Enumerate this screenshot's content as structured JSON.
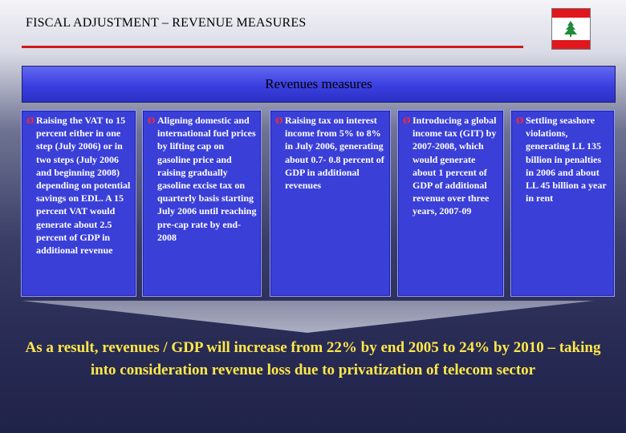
{
  "slide": {
    "title": "FISCAL ADJUSTMENT – REVENUE MEASURES",
    "banner": "Revenues measures",
    "measures": [
      "Raising the VAT to 15 percent either in one step (July 2006) or in two steps (July 2006 and beginning 2008) depending on potential savings on EDL. A 15 percent VAT would generate about 2.5 percent of GDP in additional revenue",
      "Aligning domestic and international fuel prices by lifting cap on gasoline price and raising gradually gasoline excise tax on quarterly basis starting July 2006 until reaching pre-cap rate by end-2008",
      "Raising tax on interest income from 5% to 8% in July 2006, generating about 0.7- 0.8 percent of GDP in additional revenues",
      "Introducing a global income tax (GIT) by 2007-2008, which would generate about 1 percent of GDP of additional revenue over three years, 2007-09",
      "Settling seashore violations, generating LL 135 billion in penalties in 2006 and about LL 45 billion a year in rent"
    ],
    "bullet_glyph": "Ø",
    "result": "As a result, revenues / GDP will increase from 22% by end 2005 to 24% by 2010 – taking into consideration revenue loss due to privatization of telecom sector"
  },
  "colors": {
    "title_rule": "#d01a1a",
    "banner": "#3a3ee0",
    "panel": "#3a3fd8",
    "bullet": "#ff2a2a",
    "result_text": "#ffe84a",
    "flag_red": "#e0181e",
    "cedar_green": "#1f8a3a"
  },
  "icons": {
    "flag": "lebanon-flag-icon",
    "bullet": "arrowhead-bullet-icon"
  }
}
